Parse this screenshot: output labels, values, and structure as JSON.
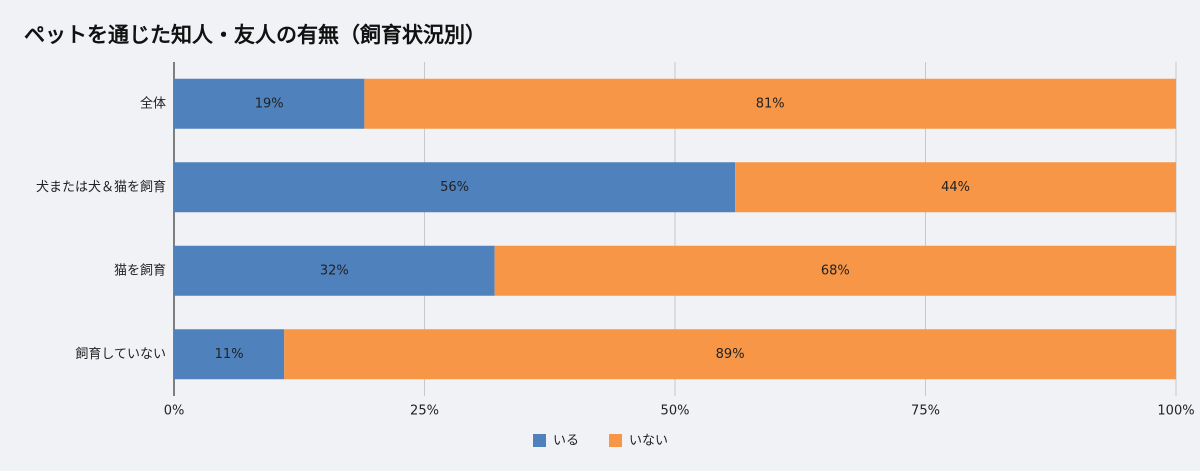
{
  "chart_data": {
    "type": "bar",
    "orientation": "horizontal",
    "stacked": true,
    "title": "ペットを通じた知人・友人の有無（飼育状況別）",
    "categories": [
      "全体",
      "犬または犬＆猫を飼育",
      "猫を飼育",
      "飼育していない"
    ],
    "series": [
      {
        "name": "いる",
        "color": "#4f81bd",
        "values": [
          19,
          56,
          32,
          11
        ],
        "value_labels": [
          "19%",
          "56%",
          "32%",
          "11%"
        ]
      },
      {
        "name": "いない",
        "color": "#f79646",
        "values": [
          81,
          44,
          68,
          89
        ],
        "value_labels": [
          "81%",
          "44%",
          "68%",
          "89%"
        ]
      }
    ],
    "xlim": [
      0,
      100
    ],
    "xticks": [
      {
        "value": 0,
        "label": "0%"
      },
      {
        "value": 25,
        "label": "25%"
      },
      {
        "value": 50,
        "label": "50%"
      },
      {
        "value": 75,
        "label": "75%"
      },
      {
        "value": 100,
        "label": "100%"
      }
    ],
    "grid": true,
    "legend": "bottom"
  }
}
